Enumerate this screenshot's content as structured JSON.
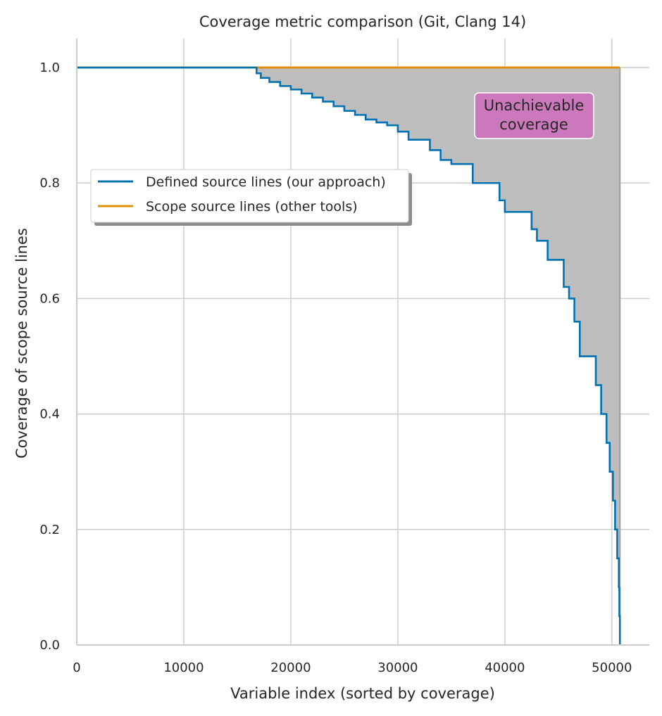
{
  "chart_data": {
    "type": "line",
    "title": "Coverage metric comparison (Git, Clang 14)",
    "xlabel": "Variable index (sorted by coverage)",
    "ylabel": "Coverage of scope source lines",
    "xlim": [
      0,
      53500
    ],
    "ylim": [
      0,
      1.05
    ],
    "xticks": [
      0,
      10000,
      20000,
      30000,
      40000,
      50000
    ],
    "yticks": [
      0.0,
      0.2,
      0.4,
      0.6,
      0.8,
      1.0
    ],
    "xtick_labels": [
      "0",
      "10000",
      "20000",
      "30000",
      "40000",
      "50000"
    ],
    "ytick_labels": [
      "0.0",
      "0.2",
      "0.4",
      "0.6",
      "0.8",
      "1.0"
    ],
    "grid": true,
    "legend_position": "upper-left",
    "series": [
      {
        "name": "Defined source lines (our approach)",
        "color": "#0072b2",
        "x": [
          0,
          16600,
          16800,
          17200,
          18000,
          19000,
          20000,
          21000,
          22000,
          23000,
          24000,
          25000,
          26000,
          27000,
          28000,
          29000,
          30000,
          31000,
          32000,
          33000,
          34000,
          35000,
          36000,
          37000,
          38000,
          39000,
          39500,
          40000,
          41000,
          42000,
          42500,
          43000,
          44000,
          45000,
          45500,
          46000,
          46500,
          47000,
          48000,
          48500,
          49000,
          49500,
          49800,
          50100,
          50300,
          50500,
          50650,
          50700,
          50750
        ],
        "y": [
          1.0,
          1.0,
          0.99,
          0.982,
          0.975,
          0.968,
          0.962,
          0.955,
          0.948,
          0.941,
          0.933,
          0.925,
          0.918,
          0.91,
          0.905,
          0.9,
          0.889,
          0.875,
          0.875,
          0.857,
          0.84,
          0.833,
          0.833,
          0.8,
          0.8,
          0.8,
          0.77,
          0.75,
          0.75,
          0.75,
          0.72,
          0.7,
          0.667,
          0.667,
          0.62,
          0.6,
          0.56,
          0.5,
          0.5,
          0.45,
          0.4,
          0.35,
          0.3,
          0.25,
          0.2,
          0.15,
          0.1,
          0.05,
          0.0
        ]
      },
      {
        "name": "Scope source lines (other tools)",
        "color": "#de8f05",
        "x": [
          0,
          50750
        ],
        "y": [
          1.0,
          1.0
        ]
      }
    ],
    "fill_between": {
      "series": [
        "Defined source lines (our approach)",
        "Scope source lines (other tools)"
      ],
      "color": "#bdbdbd"
    },
    "annotations": [
      {
        "text_lines": [
          "Unachievable",
          "coverage"
        ],
        "x": 42500,
        "y": 0.915,
        "box_color": "#cc78bc"
      }
    ]
  }
}
